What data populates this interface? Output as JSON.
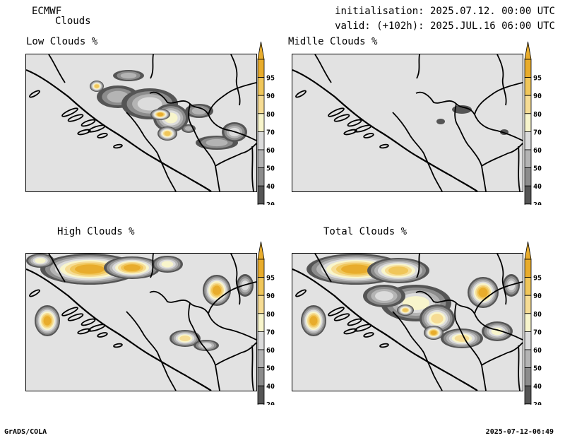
{
  "header": {
    "model": "ECMWF",
    "product": "Clouds",
    "init_label": "initialisation: 2025.07.12. 00:00 UTC",
    "valid_label": "valid: (+102h): 2025.JUL.16 06:00 UTC"
  },
  "panels": [
    {
      "title": "Low Clouds %"
    },
    {
      "title": "Midlle Clouds %"
    },
    {
      "title": "High Clouds %"
    },
    {
      "title": "Total Clouds %"
    }
  ],
  "colorbar": {
    "levels": [
      "95",
      "90",
      "80",
      "70",
      "60",
      "50",
      "40",
      "20"
    ],
    "colors": {
      "95": "#e8ac2c",
      "90": "#f0c65a",
      "80": "#f6dc94",
      "70": "#f8f5cc",
      "60": "#dcdcdc",
      "50": "#b4b4b4",
      "40": "#8c8c8c",
      "20": "#555555",
      "below": "#f6f6f6"
    }
  },
  "footer": {
    "left": "GrADS/COLA",
    "right": "2025-07-12-06:49"
  }
}
